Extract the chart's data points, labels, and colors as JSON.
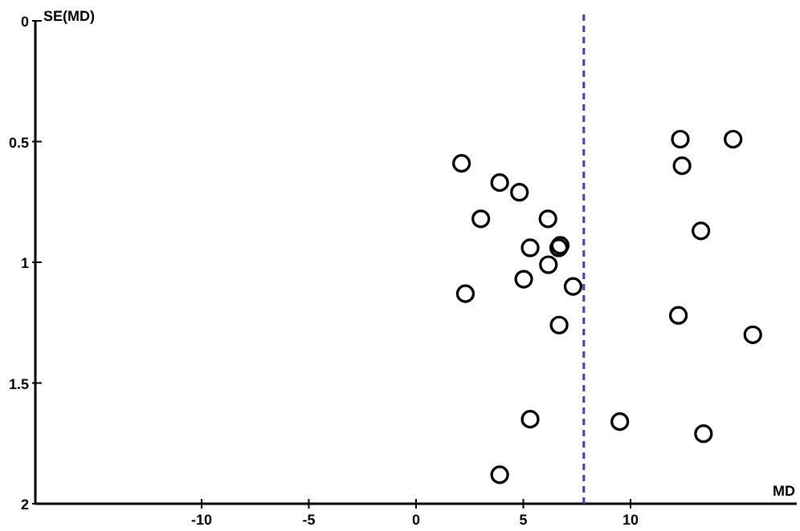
{
  "chart_data": {
    "type": "scatter",
    "xlabel": "MD",
    "ylabel": "SE(MD)",
    "xlim": [
      -17.75,
      17.75
    ],
    "ylim": [
      2,
      0
    ],
    "xticks": [
      -10,
      -5,
      0,
      5,
      10
    ],
    "yticks": [
      0,
      0.5,
      1,
      1.5,
      2
    ],
    "marker": "circle",
    "grid": false,
    "series": [
      {
        "color": "#000000",
        "x": [
          2.12,
          3.9,
          4.82,
          3.02,
          6.15,
          5.32,
          6.72,
          6.65,
          6.17,
          5.02,
          7.32,
          2.3,
          6.67,
          5.32,
          3.9,
          12.32,
          14.78,
          12.4,
          13.28,
          12.23,
          15.7,
          9.5,
          13.4
        ],
        "values": [
          0.59,
          0.67,
          0.71,
          0.82,
          0.82,
          0.94,
          0.93,
          0.94,
          1.01,
          1.07,
          1.1,
          1.13,
          1.26,
          1.65,
          1.88,
          0.49,
          0.49,
          0.6,
          0.87,
          1.22,
          1.3,
          1.66,
          1.71
        ]
      }
    ],
    "ref_lines": [
      {
        "axis": "x",
        "value": 7.82,
        "color": "#3a3ad0",
        "line_style": "dashed"
      }
    ]
  }
}
